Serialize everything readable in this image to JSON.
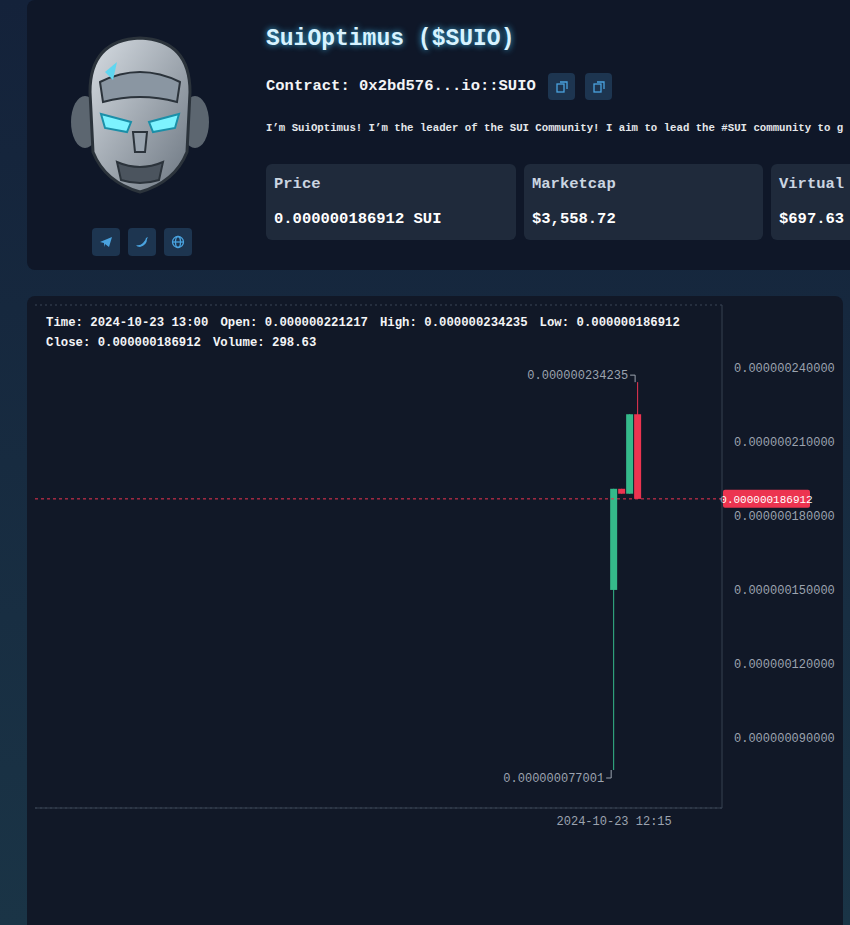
{
  "header": {
    "name": "SuiOptimus ($SUIO)",
    "contract_label": "Contract:",
    "contract": "0x2bd576...io::SUIO",
    "description": "I’m SuiOptimus! I’m the leader of the SUI Community! I aim to lead the #SUI community to g",
    "stats": [
      {
        "label": "Price",
        "value": "0.000000186912 SUI"
      },
      {
        "label": "Marketcap",
        "value": "$3,558.72"
      },
      {
        "label": "Virtual",
        "value": "$697.63"
      }
    ]
  },
  "chart_data": {
    "type": "candlestick",
    "info": [
      [
        {
          "label": "Time:",
          "value": "2024-10-23 13:00"
        },
        {
          "label": "Open:",
          "value": "0.000000221217"
        },
        {
          "label": "High:",
          "value": "0.000000234235"
        },
        {
          "label": "Low:",
          "value": "0.000000186912"
        }
      ],
      [
        {
          "label": "Close:",
          "value": "0.000000186912"
        },
        {
          "label": "Volume:",
          "value": "298.63"
        }
      ]
    ],
    "categories": [
      null,
      null,
      null,
      null,
      null,
      null,
      null,
      null,
      null,
      null,
      null,
      null,
      null,
      null,
      null,
      null,
      null,
      null,
      null,
      null,
      null,
      null,
      null,
      null,
      null,
      null,
      null,
      null,
      null,
      null,
      null,
      null,
      null,
      null,
      null,
      null,
      null,
      null,
      null,
      null,
      null,
      null,
      null,
      null,
      null,
      null,
      null,
      null,
      null,
      null,
      null,
      null,
      null,
      null,
      null,
      null,
      null,
      null,
      null,
      null,
      null,
      null,
      null,
      null,
      null,
      null,
      null,
      null,
      null,
      null,
      null,
      null,
      "2024-10-23 12:15",
      null,
      null,
      null,
      null,
      null,
      null,
      null,
      null,
      null,
      null,
      null,
      null,
      null
    ],
    "open": [
      null,
      null,
      null,
      null,
      null,
      null,
      null,
      null,
      null,
      null,
      null,
      null,
      null,
      null,
      null,
      null,
      null,
      null,
      null,
      null,
      null,
      null,
      null,
      null,
      null,
      null,
      null,
      null,
      null,
      null,
      null,
      null,
      null,
      null,
      null,
      null,
      null,
      null,
      null,
      null,
      null,
      null,
      null,
      null,
      null,
      null,
      null,
      null,
      null,
      null,
      null,
      null,
      null,
      null,
      null,
      null,
      null,
      null,
      null,
      null,
      null,
      null,
      null,
      null,
      null,
      null,
      null,
      null,
      null,
      null,
      null,
      null,
      1.5e-07,
      1.91e-07,
      1.89e-07,
      2.21217e-07,
      null,
      null,
      null,
      null,
      null,
      null,
      null,
      null,
      null,
      null
    ],
    "high": [
      null,
      null,
      null,
      null,
      null,
      null,
      null,
      null,
      null,
      null,
      null,
      null,
      null,
      null,
      null,
      null,
      null,
      null,
      null,
      null,
      null,
      null,
      null,
      null,
      null,
      null,
      null,
      null,
      null,
      null,
      null,
      null,
      null,
      null,
      null,
      null,
      null,
      null,
      null,
      null,
      null,
      null,
      null,
      null,
      null,
      null,
      null,
      null,
      null,
      null,
      null,
      null,
      null,
      null,
      null,
      null,
      null,
      null,
      null,
      null,
      null,
      null,
      null,
      null,
      null,
      null,
      null,
      null,
      null,
      null,
      null,
      null,
      1.91e-07,
      1.91e-07,
      2.21217e-07,
      2.34235e-07,
      null,
      null,
      null,
      null,
      null,
      null,
      null,
      null,
      null,
      null
    ],
    "low": [
      null,
      null,
      null,
      null,
      null,
      null,
      null,
      null,
      null,
      null,
      null,
      null,
      null,
      null,
      null,
      null,
      null,
      null,
      null,
      null,
      null,
      null,
      null,
      null,
      null,
      null,
      null,
      null,
      null,
      null,
      null,
      null,
      null,
      null,
      null,
      null,
      null,
      null,
      null,
      null,
      null,
      null,
      null,
      null,
      null,
      null,
      null,
      null,
      null,
      null,
      null,
      null,
      null,
      null,
      null,
      null,
      null,
      null,
      null,
      null,
      null,
      null,
      null,
      null,
      null,
      null,
      null,
      null,
      null,
      null,
      null,
      null,
      7.7001e-08,
      1.89e-07,
      1.89e-07,
      1.86912e-07,
      null,
      null,
      null,
      null,
      null,
      null,
      null,
      null,
      null,
      null
    ],
    "close": [
      null,
      null,
      null,
      null,
      null,
      null,
      null,
      null,
      null,
      null,
      null,
      null,
      null,
      null,
      null,
      null,
      null,
      null,
      null,
      null,
      null,
      null,
      null,
      null,
      null,
      null,
      null,
      null,
      null,
      null,
      null,
      null,
      null,
      null,
      null,
      null,
      null,
      null,
      null,
      null,
      null,
      null,
      null,
      null,
      null,
      null,
      null,
      null,
      null,
      null,
      null,
      null,
      null,
      null,
      null,
      null,
      null,
      null,
      null,
      null,
      null,
      null,
      null,
      null,
      null,
      null,
      null,
      null,
      null,
      null,
      null,
      null,
      1.91e-07,
      1.89e-07,
      2.21217e-07,
      1.86912e-07,
      null,
      null,
      null,
      null,
      null,
      null,
      null,
      null,
      null,
      null
    ],
    "ylim": [
      6.16e-08,
      2.655e-07
    ],
    "yticks": [
      {
        "value": 9e-08,
        "label": "0.000000090000"
      },
      {
        "value": 1.2e-07,
        "label": "0.000000120000"
      },
      {
        "value": 1.5e-07,
        "label": "0.000000150000"
      },
      {
        "value": 1.8e-07,
        "label": "0.000000180000"
      },
      {
        "value": 2.1e-07,
        "label": "0.000000210000"
      },
      {
        "value": 2.4e-07,
        "label": "0.000000240000"
      }
    ],
    "grid": true,
    "price_line": {
      "value": 1.86912e-07,
      "label": "0.000000186912"
    },
    "annotations": [
      {
        "value": 2.34235e-07,
        "label": "0.000000234235"
      },
      {
        "value": 7.7001e-08,
        "label": "0.000000077001"
      }
    ]
  }
}
